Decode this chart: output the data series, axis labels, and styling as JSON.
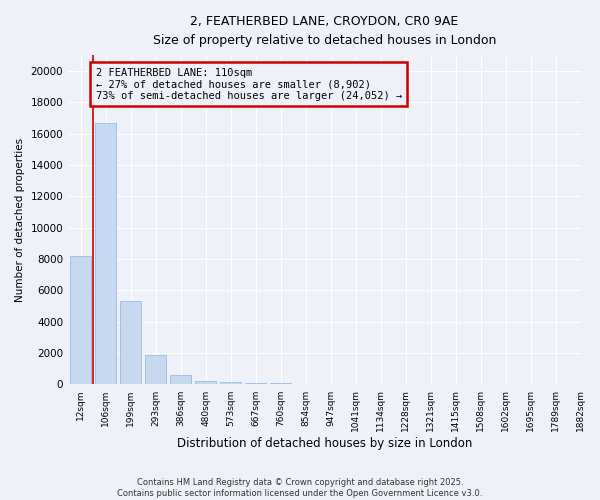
{
  "title_line1": "2, FEATHERBED LANE, CROYDON, CR0 9AE",
  "title_line2": "Size of property relative to detached houses in London",
  "xlabel": "Distribution of detached houses by size in London",
  "ylabel": "Number of detached properties",
  "bar_values": [
    8200,
    16700,
    5350,
    1850,
    600,
    200,
    130,
    100,
    70,
    50,
    40,
    30,
    20,
    15,
    10,
    8,
    5,
    4,
    3,
    2
  ],
  "bar_labels": [
    "12sqm",
    "106sqm",
    "199sqm",
    "293sqm",
    "386sqm",
    "480sqm",
    "573sqm",
    "667sqm",
    "760sqm",
    "854sqm",
    "947sqm",
    "1041sqm",
    "1134sqm",
    "1228sqm",
    "1321sqm",
    "1415sqm",
    "1508sqm",
    "1602sqm",
    "1695sqm",
    "1789sqm",
    "1882sqm"
  ],
  "bar_color": "#c6d9f0",
  "bar_edgecolor": "#8db4e2",
  "annotation_title": "2 FEATHERBED LANE: 110sqm",
  "annotation_line1": "← 27% of detached houses are smaller (8,902)",
  "annotation_line2": "73% of semi-detached houses are larger (24,052) →",
  "annotation_box_color": "#cc0000",
  "vline_x": 0.5,
  "vline_color": "#cc0000",
  "ylim": [
    0,
    21000
  ],
  "yticks": [
    0,
    2000,
    4000,
    6000,
    8000,
    10000,
    12000,
    14000,
    16000,
    18000,
    20000
  ],
  "footer_line1": "Contains HM Land Registry data © Crown copyright and database right 2025.",
  "footer_line2": "Contains public sector information licensed under the Open Government Licence v3.0.",
  "bg_color": "#eef2f8",
  "grid_color": "#ffffff"
}
